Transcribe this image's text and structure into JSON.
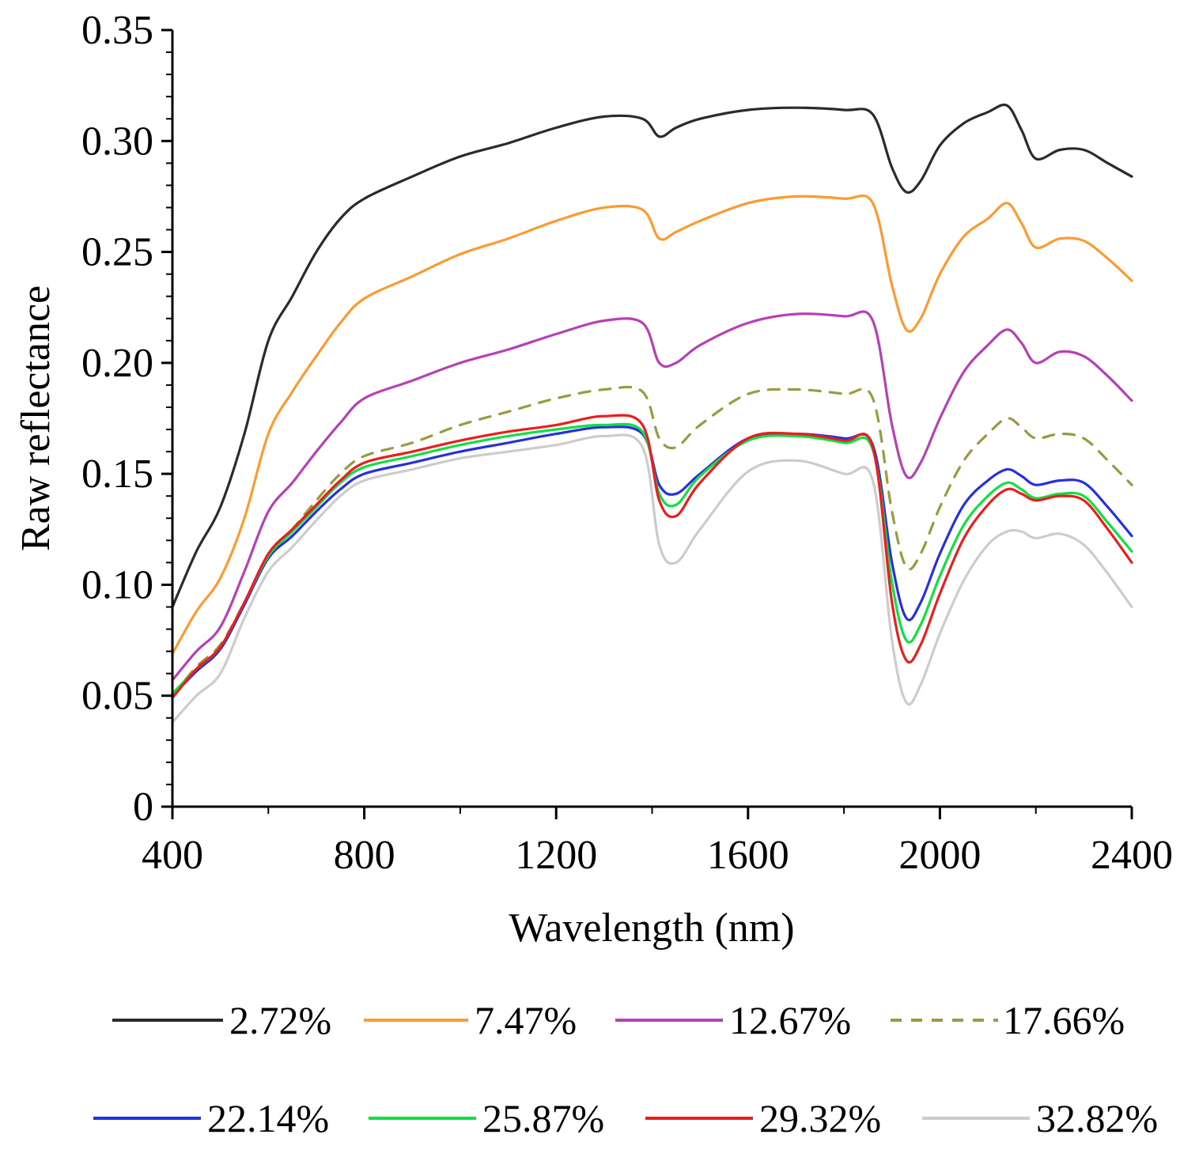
{
  "chart_data": {
    "type": "line",
    "title": "",
    "xlabel": "Wavelength (nm)",
    "ylabel": "Raw reflectance",
    "xlim": [
      400,
      2400
    ],
    "ylim": [
      0,
      0.35
    ],
    "grid": false,
    "legend_position": "bottom",
    "x_ticks": [
      400,
      800,
      1200,
      1600,
      2000,
      2400
    ],
    "x_tick_labels": [
      "400",
      "800",
      "1200",
      "1600",
      "2000",
      "2400"
    ],
    "y_ticks": [
      0,
      0.05,
      0.1,
      0.15,
      0.2,
      0.25,
      0.3,
      0.35
    ],
    "y_tick_labels": [
      "0",
      "0.05",
      "0.10",
      "0.15",
      "0.20",
      "0.25",
      "0.30",
      "0.35"
    ],
    "x": [
      400,
      450,
      500,
      550,
      600,
      650,
      700,
      750,
      800,
      900,
      1000,
      1100,
      1200,
      1300,
      1380,
      1415,
      1450,
      1500,
      1600,
      1700,
      1800,
      1860,
      1900,
      1930,
      1960,
      2000,
      2050,
      2100,
      2140,
      2170,
      2200,
      2250,
      2300,
      2350,
      2400
    ],
    "series": [
      {
        "name": "2.72%",
        "color": "#2b2b2b",
        "dash": "",
        "values": [
          0.09,
          0.115,
          0.135,
          0.168,
          0.21,
          0.23,
          0.25,
          0.265,
          0.274,
          0.284,
          0.293,
          0.299,
          0.306,
          0.311,
          0.31,
          0.302,
          0.306,
          0.31,
          0.314,
          0.315,
          0.314,
          0.312,
          0.288,
          0.277,
          0.282,
          0.298,
          0.308,
          0.313,
          0.316,
          0.305,
          0.292,
          0.296,
          0.296,
          0.29,
          0.284
        ]
      },
      {
        "name": "7.47%",
        "color": "#ff9a30",
        "dash": "",
        "values": [
          0.069,
          0.088,
          0.103,
          0.13,
          0.168,
          0.187,
          0.203,
          0.218,
          0.229,
          0.239,
          0.249,
          0.256,
          0.264,
          0.27,
          0.269,
          0.256,
          0.259,
          0.264,
          0.272,
          0.275,
          0.274,
          0.272,
          0.235,
          0.215,
          0.22,
          0.24,
          0.257,
          0.265,
          0.272,
          0.263,
          0.252,
          0.256,
          0.255,
          0.247,
          0.237
        ]
      },
      {
        "name": "12.67%",
        "color": "#b640b6",
        "dash": "",
        "values": [
          0.057,
          0.07,
          0.081,
          0.106,
          0.133,
          0.146,
          0.16,
          0.173,
          0.184,
          0.192,
          0.2,
          0.206,
          0.213,
          0.219,
          0.218,
          0.2,
          0.2,
          0.208,
          0.218,
          0.222,
          0.221,
          0.219,
          0.172,
          0.149,
          0.155,
          0.175,
          0.196,
          0.208,
          0.215,
          0.209,
          0.2,
          0.205,
          0.203,
          0.194,
          0.183
        ]
      },
      {
        "name": "17.66%",
        "color": "#9a9a40",
        "dash": "14,12",
        "values": [
          0.05,
          0.063,
          0.073,
          0.092,
          0.113,
          0.125,
          0.138,
          0.15,
          0.158,
          0.164,
          0.172,
          0.178,
          0.184,
          0.188,
          0.187,
          0.166,
          0.162,
          0.172,
          0.186,
          0.188,
          0.186,
          0.184,
          0.133,
          0.108,
          0.114,
          0.135,
          0.156,
          0.168,
          0.175,
          0.171,
          0.166,
          0.168,
          0.166,
          0.156,
          0.145
        ]
      },
      {
        "name": "22.14%",
        "color": "#2530e0",
        "dash": "",
        "values": [
          0.05,
          0.061,
          0.071,
          0.091,
          0.112,
          0.122,
          0.133,
          0.143,
          0.15,
          0.155,
          0.16,
          0.164,
          0.168,
          0.171,
          0.168,
          0.145,
          0.141,
          0.15,
          0.166,
          0.168,
          0.166,
          0.163,
          0.11,
          0.085,
          0.092,
          0.114,
          0.136,
          0.147,
          0.152,
          0.149,
          0.145,
          0.147,
          0.146,
          0.135,
          0.122
        ]
      },
      {
        "name": "25.87%",
        "color": "#10e040",
        "dash": "",
        "values": [
          0.051,
          0.062,
          0.072,
          0.092,
          0.113,
          0.124,
          0.135,
          0.146,
          0.153,
          0.158,
          0.163,
          0.167,
          0.17,
          0.172,
          0.169,
          0.141,
          0.136,
          0.149,
          0.165,
          0.167,
          0.164,
          0.161,
          0.101,
          0.075,
          0.082,
          0.104,
          0.127,
          0.14,
          0.146,
          0.143,
          0.139,
          0.141,
          0.14,
          0.128,
          0.115
        ]
      },
      {
        "name": "29.32%",
        "color": "#ee1c1c",
        "dash": "",
        "values": [
          0.049,
          0.062,
          0.072,
          0.092,
          0.114,
          0.125,
          0.136,
          0.147,
          0.155,
          0.16,
          0.165,
          0.169,
          0.172,
          0.176,
          0.172,
          0.138,
          0.131,
          0.146,
          0.166,
          0.168,
          0.165,
          0.162,
          0.092,
          0.066,
          0.073,
          0.096,
          0.121,
          0.136,
          0.143,
          0.141,
          0.138,
          0.14,
          0.138,
          0.125,
          0.11
        ]
      },
      {
        "name": "32.82%",
        "color": "#cccccc",
        "dash": "",
        "values": [
          0.038,
          0.05,
          0.06,
          0.085,
          0.106,
          0.117,
          0.129,
          0.14,
          0.147,
          0.152,
          0.157,
          0.16,
          0.163,
          0.167,
          0.162,
          0.118,
          0.11,
          0.125,
          0.151,
          0.156,
          0.15,
          0.147,
          0.075,
          0.047,
          0.055,
          0.078,
          0.102,
          0.118,
          0.124,
          0.124,
          0.121,
          0.123,
          0.118,
          0.105,
          0.09
        ]
      }
    ]
  }
}
